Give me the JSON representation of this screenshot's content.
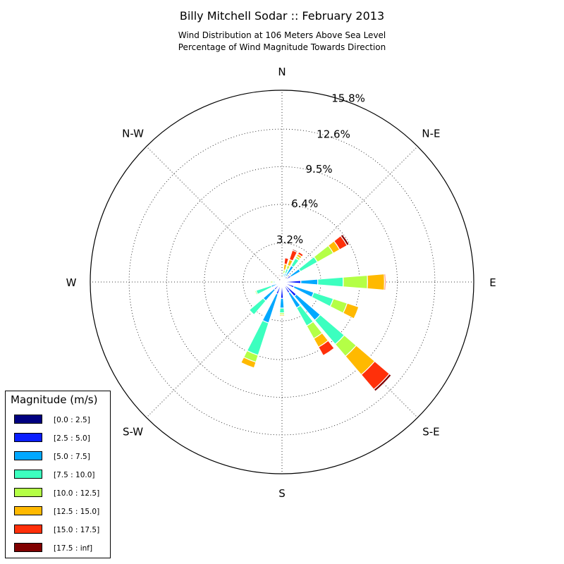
{
  "chart_data": {
    "type": "windrose",
    "title": "Billy Mitchell Sodar :: February 2013",
    "subtitle_lines": [
      "Wind Distribution at 106 Meters Above Sea Level",
      "Percentage of Wind Magnitude Towards Direction"
    ],
    "direction_labels": [
      "N",
      "N-E",
      "E",
      "S-E",
      "S",
      "S-W",
      "W",
      "N-W"
    ],
    "radial_ticks": [
      "3.2%",
      "6.4%",
      "9.5%",
      "12.6%",
      "15.8%"
    ],
    "radial_max": 15.8,
    "bin_colors": [
      "#000080",
      "#0a1eff",
      "#00a8ff",
      "#3cffbf",
      "#b4ff46",
      "#ffb900",
      "#ff300a",
      "#800000"
    ],
    "legend": {
      "title": "Magnitude (m/s)",
      "bins": [
        "[0.0 : 2.5]",
        "[2.5 : 5.0]",
        "[5.0 : 7.5]",
        "[7.5 : 10.0]",
        "[10.0 : 12.5]",
        "[12.5 : 15.0]",
        "[15.0 : 17.5]",
        "[17.5 : inf]"
      ]
    },
    "sectors": [
      {
        "direction_deg": 0,
        "values": [
          0,
          0,
          0,
          0,
          0,
          0,
          0,
          0
        ]
      },
      {
        "direction_deg": 11.25,
        "values": [
          0.05,
          0.1,
          0.25,
          0.3,
          0.3,
          0.5,
          0.5,
          0
        ]
      },
      {
        "direction_deg": 22.5,
        "values": [
          0.05,
          0.2,
          0.5,
          0.4,
          0.3,
          0.5,
          0.8,
          0.1
        ]
      },
      {
        "direction_deg": 33.75,
        "values": [
          0.05,
          0.5,
          1.0,
          0.7,
          0.2,
          0.2,
          0.2,
          0
        ]
      },
      {
        "direction_deg": 45,
        "values": [
          0,
          0,
          0,
          0,
          0,
          0,
          0,
          0
        ]
      },
      {
        "direction_deg": 56.25,
        "values": [
          0.05,
          0.8,
          0.9,
          1.6,
          1.5,
          0.6,
          0.7,
          0.2
        ]
      },
      {
        "direction_deg": 67.5,
        "values": [
          0,
          0,
          0,
          0,
          0,
          0,
          0,
          0
        ]
      },
      {
        "direction_deg": 78.75,
        "values": [
          0,
          0,
          0,
          0,
          0,
          0,
          0,
          0
        ]
      },
      {
        "direction_deg": 90,
        "values": [
          0.05,
          1.5,
          1.4,
          2.1,
          2.0,
          1.4,
          0.1,
          0
        ]
      },
      {
        "direction_deg": 101.25,
        "values": [
          0,
          0,
          0,
          0,
          0,
          0,
          0,
          0
        ]
      },
      {
        "direction_deg": 112.5,
        "values": [
          0.05,
          1.0,
          1.7,
          1.7,
          1.2,
          1.0,
          0,
          0
        ]
      },
      {
        "direction_deg": 123.75,
        "values": [
          0,
          0,
          0,
          0,
          0,
          0,
          0,
          0
        ]
      },
      {
        "direction_deg": 135,
        "values": [
          0.05,
          1.5,
          2.6,
          2.6,
          1.3,
          2.0,
          1.6,
          0.2
        ]
      },
      {
        "direction_deg": 146.25,
        "values": [
          0.05,
          1.0,
          1.4,
          1.7,
          1.2,
          0.8,
          0.8,
          0
        ]
      },
      {
        "direction_deg": 157.5,
        "values": [
          0,
          0,
          0,
          0,
          0,
          0,
          0,
          0
        ]
      },
      {
        "direction_deg": 168.75,
        "values": [
          0,
          0,
          0,
          0,
          0,
          0,
          0,
          0
        ]
      },
      {
        "direction_deg": 180,
        "values": [
          0.05,
          1.3,
          0.8,
          0.4,
          0.15,
          0.1,
          0.05,
          0
        ]
      },
      {
        "direction_deg": 191.25,
        "values": [
          0,
          0,
          0,
          0,
          0,
          0,
          0,
          0
        ]
      },
      {
        "direction_deg": 202.5,
        "values": [
          0.05,
          1.0,
          2.5,
          2.8,
          0.6,
          0.5,
          0,
          0
        ]
      },
      {
        "direction_deg": 213.75,
        "values": [
          0,
          0,
          0,
          0,
          0,
          0,
          0,
          0
        ]
      },
      {
        "direction_deg": 225,
        "values": [
          0.05,
          0.8,
          1.2,
          1.5,
          0,
          0,
          0,
          0
        ]
      },
      {
        "direction_deg": 236.25,
        "values": [
          0,
          0,
          0,
          0,
          0,
          0,
          0,
          0
        ]
      },
      {
        "direction_deg": 247.5,
        "values": [
          0.05,
          0.4,
          0.5,
          1.3,
          0.1,
          0,
          0,
          0
        ]
      },
      {
        "direction_deg": 258.75,
        "values": [
          0,
          0,
          0,
          0,
          0,
          0,
          0,
          0
        ]
      },
      {
        "direction_deg": 270,
        "values": [
          0.05,
          0.3,
          0.2,
          0.2,
          0.2,
          0,
          0,
          0
        ]
      },
      {
        "direction_deg": 281.25,
        "values": [
          0,
          0,
          0,
          0,
          0,
          0,
          0,
          0
        ]
      },
      {
        "direction_deg": 292.5,
        "values": [
          0,
          0,
          0,
          0,
          0,
          0,
          0,
          0
        ]
      },
      {
        "direction_deg": 303.75,
        "values": [
          0,
          0,
          0,
          0,
          0,
          0,
          0,
          0
        ]
      },
      {
        "direction_deg": 315,
        "values": [
          0,
          0,
          0,
          0,
          0,
          0,
          0,
          0
        ]
      },
      {
        "direction_deg": 326.25,
        "values": [
          0,
          0,
          0,
          0,
          0,
          0,
          0,
          0
        ]
      },
      {
        "direction_deg": 337.5,
        "values": [
          0.05,
          0.1,
          0.1,
          0.1,
          0,
          0,
          0.2,
          0.1
        ]
      },
      {
        "direction_deg": 348.75,
        "values": [
          0.05,
          0.15,
          0.2,
          0.2,
          0,
          0,
          0,
          0
        ]
      }
    ]
  }
}
